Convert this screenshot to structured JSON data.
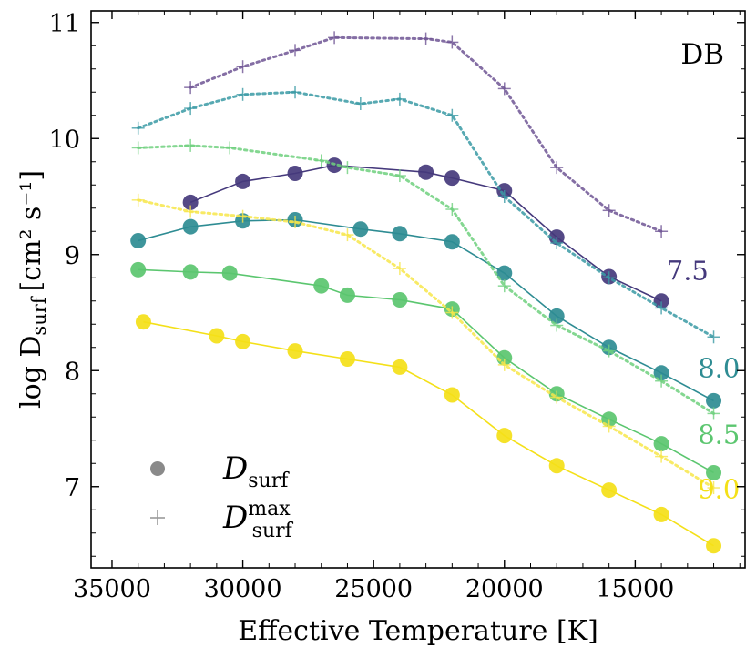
{
  "chart_data": {
    "type": "line",
    "title": "",
    "annotation": "DB",
    "xlabel": "Effective Temperature [K]",
    "ylabel": "log D",
    "ylabel_sub": "surf",
    "ylabel_units": "[cm² s⁻¹]",
    "xlim": [
      35800,
      10800
    ],
    "ylim": [
      6.3,
      11.1
    ],
    "xticks": [
      35000,
      30000,
      25000,
      20000,
      15000
    ],
    "yticks": [
      7,
      8,
      9,
      10,
      11
    ],
    "legend": {
      "position": "bottom-left",
      "entries": [
        {
          "marker": "circle",
          "label_main": "D",
          "label_sub": "surf",
          "label_sup": ""
        },
        {
          "marker": "plus",
          "label_main": "D",
          "label_sub": "surf",
          "label_sup": "max"
        }
      ]
    },
    "series": [
      {
        "name": "7.5",
        "color": "#45397c",
        "maxcolor": "#6f5594",
        "d_surf": [
          [
            32000,
            9.45
          ],
          [
            30000,
            9.63
          ],
          [
            28000,
            9.7
          ],
          [
            26500,
            9.77
          ],
          [
            23000,
            9.71
          ],
          [
            22000,
            9.66
          ],
          [
            20000,
            9.55
          ],
          [
            18000,
            9.15
          ],
          [
            16000,
            8.81
          ],
          [
            14000,
            8.6
          ]
        ],
        "d_surf_max": [
          [
            32000,
            10.44
          ],
          [
            30000,
            10.62
          ],
          [
            28000,
            10.76
          ],
          [
            26500,
            10.87
          ],
          [
            23000,
            10.86
          ],
          [
            22000,
            10.83
          ],
          [
            20000,
            10.43
          ],
          [
            18000,
            9.75
          ],
          [
            16000,
            9.38
          ],
          [
            14000,
            9.2
          ]
        ]
      },
      {
        "name": "8.0",
        "color": "#2e8c93",
        "maxcolor": "#3a9aa5",
        "d_surf": [
          [
            34000,
            9.12
          ],
          [
            32000,
            9.24
          ],
          [
            30000,
            9.29
          ],
          [
            28000,
            9.3
          ],
          [
            25500,
            9.22
          ],
          [
            24000,
            9.18
          ],
          [
            22000,
            9.11
          ],
          [
            20000,
            8.84
          ],
          [
            18000,
            8.47
          ],
          [
            16000,
            8.2
          ],
          [
            14000,
            7.98
          ],
          [
            12000,
            7.74
          ]
        ],
        "d_surf_max": [
          [
            34000,
            10.09
          ],
          [
            32000,
            10.26
          ],
          [
            30000,
            10.38
          ],
          [
            28000,
            10.4
          ],
          [
            25500,
            10.3
          ],
          [
            24000,
            10.34
          ],
          [
            22000,
            10.2
          ],
          [
            20000,
            9.5
          ],
          [
            18000,
            9.1
          ],
          [
            16000,
            8.8
          ],
          [
            14000,
            8.54
          ],
          [
            12000,
            8.29
          ]
        ]
      },
      {
        "name": "8.5",
        "color": "#5bc66f",
        "maxcolor": "#6fd07e",
        "d_surf": [
          [
            34000,
            8.87
          ],
          [
            32000,
            8.85
          ],
          [
            30500,
            8.84
          ],
          [
            27000,
            8.73
          ],
          [
            26000,
            8.65
          ],
          [
            24000,
            8.61
          ],
          [
            22000,
            8.53
          ],
          [
            20000,
            8.11
          ],
          [
            18000,
            7.8
          ],
          [
            16000,
            7.58
          ],
          [
            14000,
            7.37
          ],
          [
            12000,
            7.12
          ]
        ],
        "d_surf_max": [
          [
            34000,
            9.92
          ],
          [
            32000,
            9.94
          ],
          [
            30500,
            9.92
          ],
          [
            27000,
            9.81
          ],
          [
            26000,
            9.75
          ],
          [
            24000,
            9.68
          ],
          [
            22000,
            9.39
          ],
          [
            20000,
            8.73
          ],
          [
            18000,
            8.39
          ],
          [
            16000,
            8.17
          ],
          [
            14000,
            7.91
          ],
          [
            12000,
            7.63
          ]
        ]
      },
      {
        "name": "9.0",
        "color": "#f4e018",
        "maxcolor": "#f7e64a",
        "d_surf": [
          [
            33800,
            8.42
          ],
          [
            31000,
            8.3
          ],
          [
            30000,
            8.25
          ],
          [
            28000,
            8.17
          ],
          [
            26000,
            8.1
          ],
          [
            24000,
            8.03
          ],
          [
            22000,
            7.79
          ],
          [
            20000,
            7.44
          ],
          [
            18000,
            7.18
          ],
          [
            16000,
            6.97
          ],
          [
            14000,
            6.76
          ],
          [
            12000,
            6.49
          ]
        ],
        "d_surf_max": [
          [
            34000,
            9.47
          ],
          [
            32000,
            9.37
          ],
          [
            30000,
            9.33
          ],
          [
            28000,
            9.28
          ],
          [
            26000,
            9.17
          ],
          [
            24000,
            8.88
          ],
          [
            22000,
            8.5
          ],
          [
            20000,
            8.05
          ],
          [
            18000,
            7.77
          ],
          [
            16000,
            7.52
          ],
          [
            14000,
            7.26
          ],
          [
            12000,
            6.99
          ]
        ]
      }
    ],
    "series_label_positions": [
      [
        13000,
        8.86
      ],
      [
        11800,
        8.02
      ],
      [
        11800,
        7.45
      ],
      [
        11800,
        6.98
      ]
    ]
  }
}
